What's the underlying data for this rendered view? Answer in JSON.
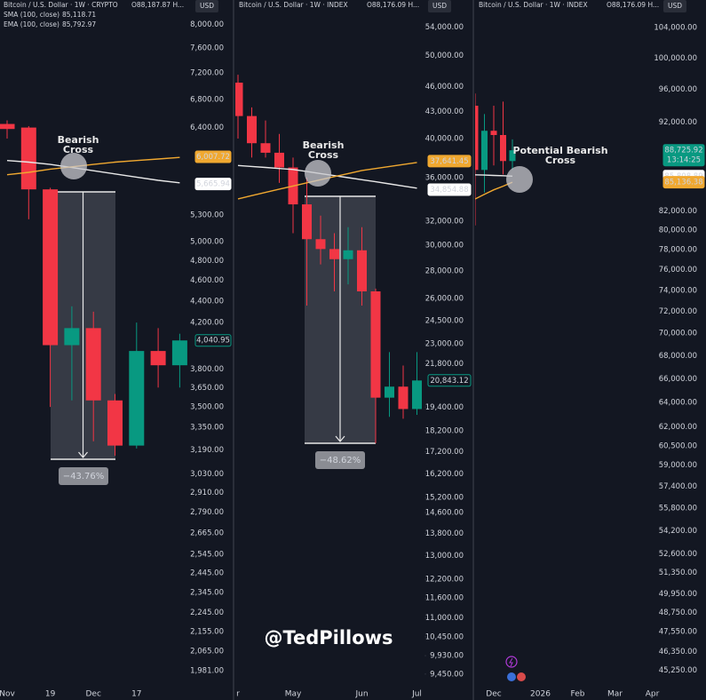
{
  "watermark": "@TedPillows",
  "chart_data": [
    {
      "type": "candlestick",
      "title": "Bitcoin / U.S. Dollar · 1W · CRYPTO",
      "ohlc_text": "O88,187.87 H...",
      "indicators": [
        {
          "label": "SMA (100, close)",
          "value": "85,118.71"
        },
        {
          "label": "EMA (100, close)",
          "value": "85,792.97"
        }
      ],
      "currency": "USD",
      "log": true,
      "ylim": [
        1924,
        8430
      ],
      "yticks": [
        {
          "value": 8000,
          "label": "8,000.00"
        },
        {
          "value": 7600,
          "label": "7,600.00"
        },
        {
          "value": 7200,
          "label": "7,200.00"
        },
        {
          "value": 6800,
          "label": "6,800.00"
        },
        {
          "value": 6400,
          "label": "6,400.00"
        },
        {
          "value": 5300,
          "label": "5,300.00"
        },
        {
          "value": 5000,
          "label": "5,000.00"
        },
        {
          "value": 4800,
          "label": "4,800.00"
        },
        {
          "value": 4600,
          "label": "4,600.00"
        },
        {
          "value": 4400,
          "label": "4,400.00"
        },
        {
          "value": 4200,
          "label": "4,200.00"
        },
        {
          "value": 3800,
          "label": "3,800.00"
        },
        {
          "value": 3650,
          "label": "3,650.00"
        },
        {
          "value": 3500,
          "label": "3,500.00"
        },
        {
          "value": 3350,
          "label": "3,350.00"
        },
        {
          "value": 3190,
          "label": "3,190.00"
        },
        {
          "value": 3030,
          "label": "3,030.00"
        },
        {
          "value": 2910,
          "label": "2,910.00"
        },
        {
          "value": 2790,
          "label": "2,790.00"
        },
        {
          "value": 2665,
          "label": "2,665.00"
        },
        {
          "value": 2545,
          "label": "2,545.00"
        },
        {
          "value": 2445,
          "label": "2,445.00"
        },
        {
          "value": 2345,
          "label": "2,345.00"
        },
        {
          "value": 2245,
          "label": "2,245.00"
        },
        {
          "value": 2155,
          "label": "2,155.00"
        },
        {
          "value": 2065,
          "label": "2,065.00"
        },
        {
          "value": 1981,
          "label": "1,981.00"
        }
      ],
      "categories": [
        "Nov",
        null,
        "19",
        null,
        "Dec",
        null,
        "17",
        null,
        null
      ],
      "open": [
        6450,
        6400,
        5600,
        4000,
        4150,
        3550,
        3220,
        3950,
        3830
      ],
      "high": [
        6500,
        6420,
        5620,
        4350,
        4300,
        3600,
        4200,
        4150,
        4100
      ],
      "low": [
        6250,
        5250,
        3500,
        3550,
        3250,
        3150,
        3200,
        3650,
        3650
      ],
      "close": [
        6380,
        5600,
        4000,
        4150,
        3550,
        3220,
        3950,
        3830,
        4041
      ],
      "up_color": "#089981",
      "down_color": "#f23645",
      "series": [
        {
          "color": "#e8e8e8",
          "values": [
            5960,
            5940,
            5910,
            5870,
            5830,
            5790,
            5750,
            5710,
            5680
          ]
        },
        {
          "color": "#f0a830",
          "values": [
            5780,
            5810,
            5850,
            5880,
            5910,
            5940,
            5960,
            5980,
            6000
          ]
        }
      ],
      "price_labels": [
        {
          "value": 6007.72,
          "label": "6,007.72",
          "color": "#f0a830"
        },
        {
          "value": 5665.94,
          "label": "5,665.94",
          "color": "#ffffff"
        },
        {
          "value": 4040.95,
          "label": "4,040.95",
          "color": "#089981"
        }
      ],
      "annotation": [
        "Bearish",
        "Cross"
      ],
      "measure": {
        "value": -43.76,
        "label": "−43.76%"
      }
    },
    {
      "type": "candlestick",
      "title": "Bitcoin / U.S. Dollar · 1W · INDEX",
      "ohlc_text": "O88,176.09 H...",
      "currency": "USD",
      "log": true,
      "ylim": [
        9200,
        58100
      ],
      "yticks": [
        {
          "value": 54000,
          "label": "54,000.00"
        },
        {
          "value": 50000,
          "label": "50,000.00"
        },
        {
          "value": 46000,
          "label": "46,000.00"
        },
        {
          "value": 43000,
          "label": "43,000.00"
        },
        {
          "value": 40000,
          "label": "40,000.00"
        },
        {
          "value": 36000,
          "label": "36,000.00"
        },
        {
          "value": 32000,
          "label": "32,000.00"
        },
        {
          "value": 30000,
          "label": "30,000.00"
        },
        {
          "value": 28000,
          "label": "28,000.00"
        },
        {
          "value": 26000,
          "label": "26,000.00"
        },
        {
          "value": 24500,
          "label": "24,500.00"
        },
        {
          "value": 23000,
          "label": "23,000.00"
        },
        {
          "value": 21800,
          "label": "21,800.00"
        },
        {
          "value": 19400,
          "label": "19,400.00"
        },
        {
          "value": 18200,
          "label": "18,200.00"
        },
        {
          "value": 17200,
          "label": "17,200.00"
        },
        {
          "value": 16200,
          "label": "16,200.00"
        },
        {
          "value": 15200,
          "label": "15,200.00"
        },
        {
          "value": 14600,
          "label": "14,600.00"
        },
        {
          "value": 13800,
          "label": "13,800.00"
        },
        {
          "value": 13000,
          "label": "13,000.00"
        },
        {
          "value": 12200,
          "label": "12,200.00"
        },
        {
          "value": 11600,
          "label": "11,600.00"
        },
        {
          "value": 11000,
          "label": "11,000.00"
        },
        {
          "value": 10450,
          "label": "10,450.00"
        },
        {
          "value": 9930,
          "label": "9,930.00"
        },
        {
          "value": 9450,
          "label": "9,450.00"
        }
      ],
      "categories": [
        "r",
        null,
        null,
        null,
        "May",
        null,
        null,
        null,
        null,
        "Jun",
        null,
        null,
        null,
        "Jul"
      ],
      "open": [
        46500,
        42500,
        39500,
        38500,
        37000,
        33500,
        30500,
        29700,
        28900,
        29600,
        26500,
        19900,
        20500,
        19300
      ],
      "high": [
        47500,
        43500,
        42000,
        40500,
        38000,
        36000,
        32500,
        31000,
        31500,
        31500,
        26700,
        22500,
        21700,
        22500
      ],
      "low": [
        40000,
        38000,
        38000,
        35500,
        31000,
        25500,
        28500,
        26500,
        27000,
        25500,
        17600,
        18900,
        18800,
        19000
      ],
      "close": [
        42500,
        39500,
        38500,
        37000,
        33500,
        30500,
        29700,
        28900,
        29600,
        26500,
        19900,
        20500,
        19300,
        20843
      ],
      "up_color": "#089981",
      "down_color": "#f23645",
      "series": [
        {
          "color": "#e8e8e8",
          "values": [
            37200,
            37100,
            37000,
            36900,
            36800,
            36600,
            36400,
            36200,
            36000,
            35800,
            35600,
            35400,
            35200,
            35000
          ]
        },
        {
          "color": "#f0a830",
          "values": [
            34000,
            34300,
            34600,
            34900,
            35200,
            35500,
            35800,
            36100,
            36400,
            36700,
            36900,
            37100,
            37300,
            37500
          ]
        }
      ],
      "price_labels": [
        {
          "value": 37641.45,
          "label": "37,641.45",
          "color": "#f0a830"
        },
        {
          "value": 34854.88,
          "label": "34,854.88",
          "color": "#ffffff"
        },
        {
          "value": 20843.12,
          "label": "20,843.12",
          "color": "#089981"
        }
      ],
      "annotation": [
        "Bearish",
        "Cross"
      ],
      "measure": {
        "value": -48.62,
        "label": "−48.62%"
      }
    },
    {
      "type": "candlestick",
      "title": "Bitcoin / U.S. Dollar · 1W · INDEX",
      "ohlc_text": "O88,176.09 H...",
      "currency": "USD",
      "log": true,
      "ylim": [
        44440,
        107800
      ],
      "yticks": [
        {
          "value": 104000,
          "label": "104,000.00"
        },
        {
          "value": 100000,
          "label": "100,000.00"
        },
        {
          "value": 96000,
          "label": "96,000.00"
        },
        {
          "value": 92000,
          "label": "92,000.00"
        },
        {
          "value": 82000,
          "label": "82,000.00"
        },
        {
          "value": 80000,
          "label": "80,000.00"
        },
        {
          "value": 78000,
          "label": "78,000.00"
        },
        {
          "value": 76000,
          "label": "76,000.00"
        },
        {
          "value": 74000,
          "label": "74,000.00"
        },
        {
          "value": 72000,
          "label": "72,000.00"
        },
        {
          "value": 70000,
          "label": "70,000.00"
        },
        {
          "value": 68000,
          "label": "68,000.00"
        },
        {
          "value": 66000,
          "label": "66,000.00"
        },
        {
          "value": 64000,
          "label": "64,000.00"
        },
        {
          "value": 62000,
          "label": "62,000.00"
        },
        {
          "value": 60500,
          "label": "60,500.00"
        },
        {
          "value": 59000,
          "label": "59,000.00"
        },
        {
          "value": 57400,
          "label": "57,400.00"
        },
        {
          "value": 55800,
          "label": "55,800.00"
        },
        {
          "value": 54200,
          "label": "54,200.00"
        },
        {
          "value": 52600,
          "label": "52,600.00"
        },
        {
          "value": 51350,
          "label": "51,350.00"
        },
        {
          "value": 49950,
          "label": "49,950.00"
        },
        {
          "value": 48750,
          "label": "48,750.00"
        },
        {
          "value": 47550,
          "label": "47,550.00"
        },
        {
          "value": 46350,
          "label": "46,350.00"
        },
        {
          "value": 45250,
          "label": "45,250.00"
        }
      ],
      "categories": [
        null,
        null,
        "Dec",
        null,
        null,
        null,
        null,
        "2026",
        null,
        null,
        null,
        "Feb",
        null,
        null,
        null,
        "Mar",
        null,
        null,
        null,
        "Apr",
        null
      ],
      "open": [
        94000,
        86500,
        91000,
        90500,
        87500,
        null,
        null,
        null,
        null,
        null,
        null,
        null,
        null,
        null,
        null,
        null,
        null,
        null,
        null,
        null,
        null
      ],
      "high": [
        95500,
        93000,
        94000,
        94500,
        90000,
        null,
        null,
        null,
        null,
        null,
        null,
        null,
        null,
        null,
        null,
        null,
        null,
        null,
        null,
        null,
        null
      ],
      "low": [
        80500,
        84000,
        87000,
        86000,
        86500,
        null,
        null,
        null,
        null,
        null,
        null,
        null,
        null,
        null,
        null,
        null,
        null,
        null,
        null,
        null,
        null
      ],
      "close": [
        86500,
        91000,
        90500,
        87500,
        88726,
        null,
        null,
        null,
        null,
        null,
        null,
        null,
        null,
        null,
        null,
        null,
        null,
        null,
        null,
        null,
        null
      ],
      "up_color": "#089981",
      "down_color": "#f23645",
      "series": [
        {
          "color": "#e8e8e8",
          "values": [
            85950,
            85920,
            85880,
            85850,
            85809,
            null,
            null,
            null,
            null,
            null,
            null,
            null,
            null,
            null,
            null,
            null,
            null,
            null,
            null,
            null,
            null
          ]
        },
        {
          "color": "#f0a830",
          "values": [
            83300,
            83800,
            84300,
            84700,
            85136,
            null,
            null,
            null,
            null,
            null,
            null,
            null,
            null,
            null,
            null,
            null,
            null,
            null,
            null,
            null,
            null
          ]
        }
      ],
      "price_labels": [
        {
          "value": 88725.92,
          "label": "88,725.92",
          "color": "#089981",
          "countdown": "13:14:25"
        },
        {
          "value": 85808.89,
          "label": "85,808.89",
          "color": "#ffffff"
        },
        {
          "value": 85136.38,
          "label": "85,136.38",
          "color": "#f0a830"
        }
      ],
      "annotation": [
        "Potential Bearish",
        "Cross"
      ]
    }
  ]
}
